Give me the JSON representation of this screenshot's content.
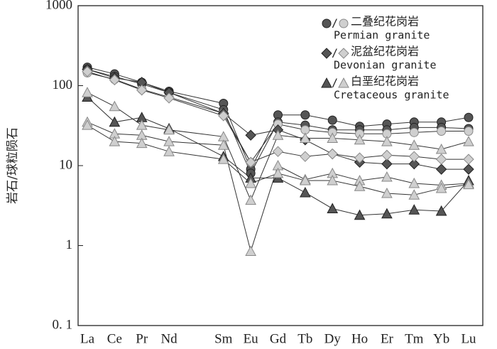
{
  "chart_data": {
    "type": "line",
    "y_label": "岩石/球粒陨石",
    "log_scale": true,
    "ylim": [
      0.1,
      1000
    ],
    "yticks": [
      {
        "value": 0.1,
        "label": "0. 1"
      },
      1,
      10,
      100,
      1000
    ],
    "categories": [
      "La",
      "Ce",
      "Pr",
      "Nd",
      "Sm",
      "Eu",
      "Gd",
      "Tb",
      "Dy",
      "Ho",
      "Er",
      "Tm",
      "Yb",
      "Lu"
    ],
    "legend_separator": "/",
    "styles": {
      "dark": {
        "fill": "#555555",
        "stroke": "#222222"
      },
      "light": {
        "fill": "#cfcfcf",
        "stroke": "#888888"
      }
    },
    "series": [
      {
        "name": "二叠纪花岗岩",
        "name_en": "Permian granite",
        "marker": "circle",
        "samples": [
          {
            "style": "dark",
            "values": [
              170,
              140,
              110,
              85,
              60,
              9,
              43,
              43,
              37,
              31,
              33,
              35,
              35,
              40
            ]
          },
          {
            "style": "dark",
            "values": [
              160,
              130,
              105,
              82,
              50,
              8,
              35,
              32,
              28,
              28,
              28,
              30,
              30,
              29
            ]
          },
          {
            "style": "light",
            "values": [
              145,
              120,
              90,
              72,
              45,
              11,
              33,
              28,
              26,
              25,
              25,
              26,
              27,
              27
            ]
          }
        ]
      },
      {
        "name": "泥盆纪花岗岩",
        "name_en": "Devonian granite",
        "marker": "diamond",
        "samples": [
          {
            "style": "dark",
            "values": [
              160,
              125,
              110,
              82,
              45,
              24,
              28,
              21,
              14,
              11,
              10.5,
              10.5,
              9,
              9
            ]
          },
          {
            "style": "light",
            "values": [
              150,
              118,
              88,
              70,
              42,
              11,
              15,
              13,
              14,
              12.5,
              13.5,
              13,
              12,
              12
            ]
          }
        ]
      },
      {
        "name": "白垩纪花岗岩",
        "name_en": "Cretaceous granite",
        "marker": "triangle",
        "samples": [
          {
            "style": "dark",
            "values": [
              72,
              35,
              40,
              29,
              13,
              7,
              7,
              4.6,
              2.9,
              2.4,
              2.5,
              2.8,
              2.7,
              6.5
            ]
          },
          {
            "style": "light",
            "values": [
              82,
              55,
              32,
              28,
              23,
              3.7,
              24,
              22,
              22,
              21,
              20,
              18,
              16,
              20
            ]
          },
          {
            "style": "light",
            "values": [
              35,
              25,
              24,
              20,
              18,
              0.85,
              10,
              6.7,
              8,
              6.5,
              7.2,
              6,
              5.7,
              6
            ]
          },
          {
            "style": "light",
            "values": [
              32,
              20,
              19,
              15,
              12,
              6,
              8,
              6.5,
              6.5,
              5.5,
              4.5,
              4.3,
              5.2,
              5.8
            ]
          }
        ]
      }
    ]
  }
}
